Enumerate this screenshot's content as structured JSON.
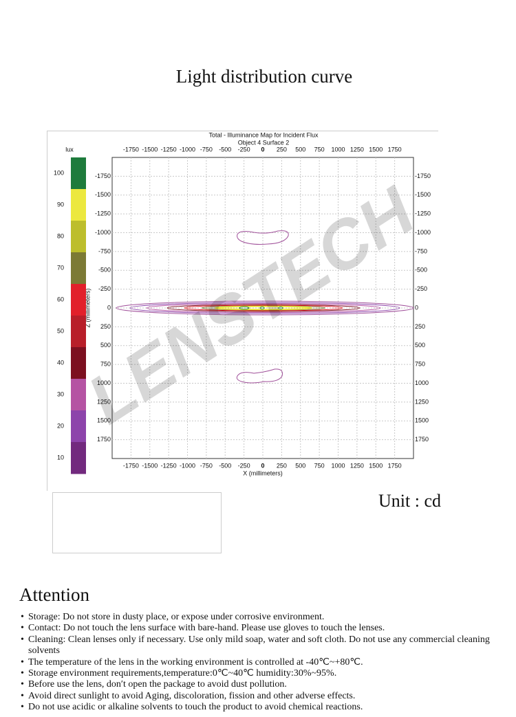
{
  "header": {
    "title": "Light distribution curve"
  },
  "figure": {
    "title": "Total - Illuminance Map for Incident Flux",
    "subtitle": "Object 4 Surface 2",
    "colorbar_label": "lux",
    "colorbar_ticks": [
      100,
      90,
      80,
      70,
      60,
      50,
      40,
      30,
      20,
      10
    ],
    "clim": [
      5,
      105
    ],
    "colorbar_colors": [
      "#1e7b3c",
      "#ece83e",
      "#bdbe2c",
      "#7c7a35",
      "#e2202b",
      "#b81f2a",
      "#7c1020",
      "#b553a3",
      "#8d44ab",
      "#722a7e"
    ],
    "xlabel": "X (millimeters)",
    "zlabel": "Z (millimeters)",
    "xlim": [
      -2000,
      2000
    ],
    "zlim": [
      -2000,
      2000
    ],
    "xticks": [
      -1750,
      -1500,
      -1250,
      -1000,
      -750,
      -500,
      -250,
      0,
      250,
      500,
      750,
      1000,
      1250,
      1500,
      1750
    ],
    "zticks": [
      -1750,
      -1500,
      -1250,
      -1000,
      -750,
      -500,
      -250,
      0,
      250,
      500,
      750,
      1000,
      1250,
      1500,
      1750
    ],
    "watermark": "LENSTECH"
  },
  "unit": "Unit : cd",
  "attention": {
    "title": "Attention",
    "items": [
      "Storage: Do not store in dusty place, or expose under corrosive environment.",
      "Contact: Do not touch the lens surface with bare-hand. Please use gloves to touch the lenses.",
      "Cleaning: Clean lenses only if necessary. Use only mild soap, water and soft cloth. Do not use any commercial cleaning solvents",
      "The temperature of the lens in the working environment is controlled at -40℃~+80℃.",
      "Storage environment requirements,temperature:0℃~40℃  humidity:30%~95%.",
      "Before use the lens, don′t open the package to avoid dust pollution.",
      "Avoid direct sunlight to avoid Aging, discoloration, fission and other adverse effects.",
      "Do not use acidic or alkaline solvents to touch the product to avoid  chemical reactions."
    ]
  }
}
